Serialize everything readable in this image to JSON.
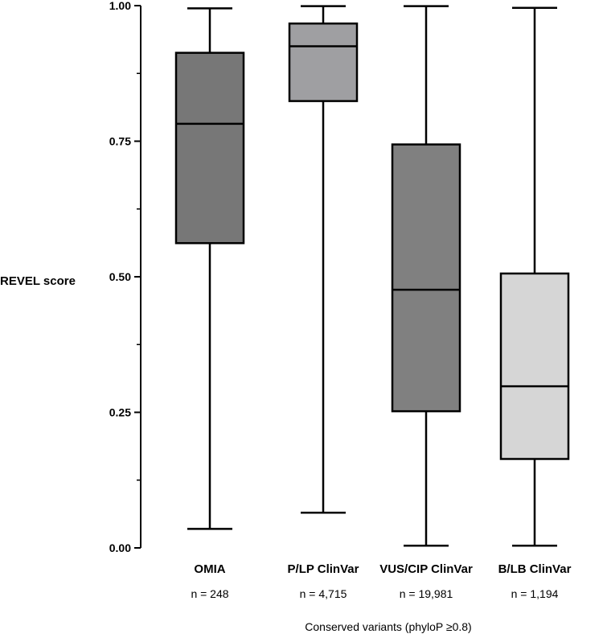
{
  "chart_data": {
    "type": "box",
    "title": "",
    "ylabel": "REVEL score",
    "xlabel": "Conserved variants (phyloP ≥0.8)",
    "ylim": [
      0,
      1
    ],
    "y_ticks": [
      0.0,
      0.25,
      0.5,
      0.75,
      1.0
    ],
    "y_tick_labels": [
      "0.00",
      "0.25",
      "0.50",
      "0.75",
      "1.00"
    ],
    "y_minor_ticks": [
      0.125,
      0.375,
      0.625,
      0.875
    ],
    "categories": [
      "OMIA",
      "P/LP ClinVar",
      "VUS/CIP ClinVar",
      "B/LB ClinVar"
    ],
    "n_labels": [
      "n = 248",
      "n = 4,715",
      "n = 19,981",
      "n = 1,194"
    ],
    "series": [
      {
        "name": "OMIA",
        "min": 0.035,
        "q1": 0.562,
        "median": 0.782,
        "q3": 0.913,
        "max": 0.995,
        "color": "#777777"
      },
      {
        "name": "P/LP ClinVar",
        "min": 0.065,
        "q1": 0.824,
        "median": 0.925,
        "q3": 0.967,
        "max": 0.999,
        "color": "#9f9fa2"
      },
      {
        "name": "VUS/CIP ClinVar",
        "min": 0.004,
        "q1": 0.252,
        "median": 0.476,
        "q3": 0.744,
        "max": 0.999,
        "color": "#808080"
      },
      {
        "name": "B/LB ClinVar",
        "min": 0.004,
        "q1": 0.164,
        "median": 0.298,
        "q3": 0.506,
        "max": 0.996,
        "color": "#d6d6d6"
      }
    ]
  }
}
